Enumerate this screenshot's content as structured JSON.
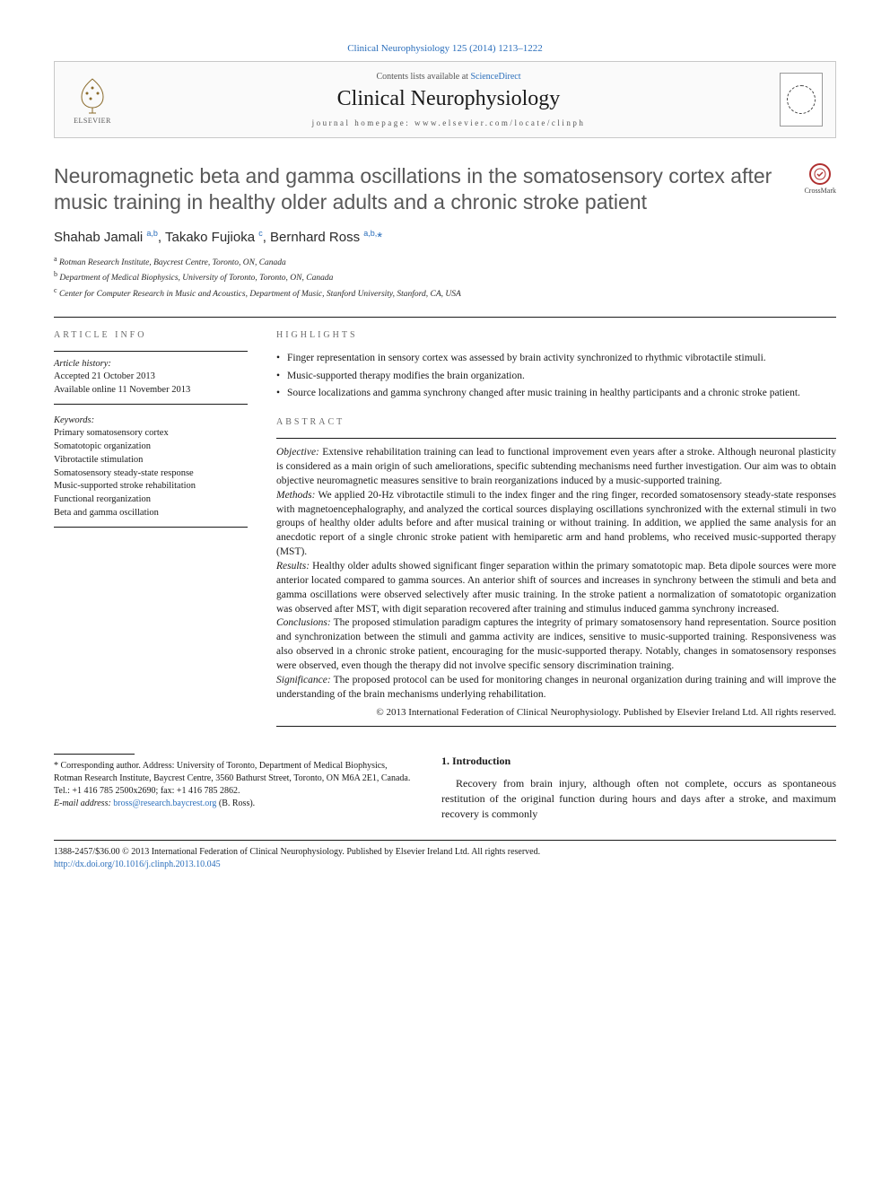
{
  "citation": "Clinical Neurophysiology 125 (2014) 1213–1222",
  "header": {
    "contents_prefix": "Contents lists available at ",
    "contents_link": "ScienceDirect",
    "journal": "Clinical Neurophysiology",
    "homepage": "journal homepage: www.elsevier.com/locate/clinph",
    "elsevier": "ELSEVIER"
  },
  "crossmark": "CrossMark",
  "title": "Neuromagnetic beta and gamma oscillations in the somatosensory cortex after music training in healthy older adults and a chronic stroke patient",
  "authors_html": "Shahab Jamali <sup>a,b</sup>, Takako Fujioka <sup>c</sup>, Bernhard Ross <sup>a,b,</sup><a>*</a>",
  "affiliations": [
    {
      "sup": "a",
      "text": "Rotman Research Institute, Baycrest Centre, Toronto, ON, Canada"
    },
    {
      "sup": "b",
      "text": "Department of Medical Biophysics, University of Toronto, Toronto, ON, Canada"
    },
    {
      "sup": "c",
      "text": "Center for Computer Research in Music and Acoustics, Department of Music, Stanford University, Stanford, CA, USA"
    }
  ],
  "article_info": {
    "head": "ARTICLE INFO",
    "history_label": "Article history:",
    "accepted": "Accepted 21 October 2013",
    "online": "Available online 11 November 2013",
    "keywords_label": "Keywords:",
    "keywords": [
      "Primary somatosensory cortex",
      "Somatotopic organization",
      "Vibrotactile stimulation",
      "Somatosensory steady-state response",
      "Music-supported stroke rehabilitation",
      "Functional reorganization",
      "Beta and gamma oscillation"
    ]
  },
  "highlights": {
    "head": "HIGHLIGHTS",
    "items": [
      "Finger representation in sensory cortex was assessed by brain activity synchronized to rhythmic vibrotactile stimuli.",
      "Music-supported therapy modifies the brain organization.",
      "Source localizations and gamma synchrony changed after music training in healthy participants and a chronic stroke patient."
    ]
  },
  "abstract": {
    "head": "ABSTRACT",
    "objective_label": "Objective:",
    "objective": " Extensive rehabilitation training can lead to functional improvement even years after a stroke. Although neuronal plasticity is considered as a main origin of such ameliorations, specific subtending mechanisms need further investigation. Our aim was to obtain objective neuromagnetic measures sensitive to brain reorganizations induced by a music-supported training.",
    "methods_label": "Methods:",
    "methods": " We applied 20-Hz vibrotactile stimuli to the index finger and the ring finger, recorded somatosensory steady-state responses with magnetoencephalography, and analyzed the cortical sources displaying oscillations synchronized with the external stimuli in two groups of healthy older adults before and after musical training or without training. In addition, we applied the same analysis for an anecdotic report of a single chronic stroke patient with hemiparetic arm and hand problems, who received music-supported therapy (MST).",
    "results_label": "Results:",
    "results": " Healthy older adults showed significant finger separation within the primary somatotopic map. Beta dipole sources were more anterior located compared to gamma sources. An anterior shift of sources and increases in synchrony between the stimuli and beta and gamma oscillations were observed selectively after music training. In the stroke patient a normalization of somatotopic organization was observed after MST, with digit separation recovered after training and stimulus induced gamma synchrony increased.",
    "conclusions_label": "Conclusions:",
    "conclusions": " The proposed stimulation paradigm captures the integrity of primary somatosensory hand representation. Source position and synchronization between the stimuli and gamma activity are indices, sensitive to music-supported training. Responsiveness was also observed in a chronic stroke patient, encouraging for the music-supported therapy. Notably, changes in somatosensory responses were observed, even though the therapy did not involve specific sensory discrimination training.",
    "significance_label": "Significance:",
    "significance": " The proposed protocol can be used for monitoring changes in neuronal organization during training and will improve the understanding of the brain mechanisms underlying rehabilitation.",
    "copyright": "© 2013 International Federation of Clinical Neurophysiology. Published by Elsevier Ireland Ltd. All rights reserved."
  },
  "corresponding": {
    "star": "*",
    "text": " Corresponding author. Address: University of Toronto, Department of Medical Biophysics, Rotman Research Institute, Baycrest Centre, 3560 Bathurst Street, Toronto, ON M6A 2E1, Canada. Tel.: +1 416 785 2500x2690; fax: +1 416 785 2862.",
    "email_label": "E-mail address:",
    "email": "bross@research.baycrest.org",
    "email_suffix": " (B. Ross)."
  },
  "intro": {
    "heading": "1. Introduction",
    "para": "Recovery from brain injury, although often not complete, occurs as spontaneous restitution of the original function during hours and days after a stroke, and maximum recovery is commonly"
  },
  "footer": {
    "issn": "1388-2457/$36.00 © 2013 International Federation of Clinical Neurophysiology. Published by Elsevier Ireland Ltd. All rights reserved.",
    "doi": "http://dx.doi.org/10.1016/j.clinph.2013.10.045"
  },
  "colors": {
    "link": "#2a6ebb",
    "title_gray": "#585858",
    "rule": "#1a1a1a"
  }
}
